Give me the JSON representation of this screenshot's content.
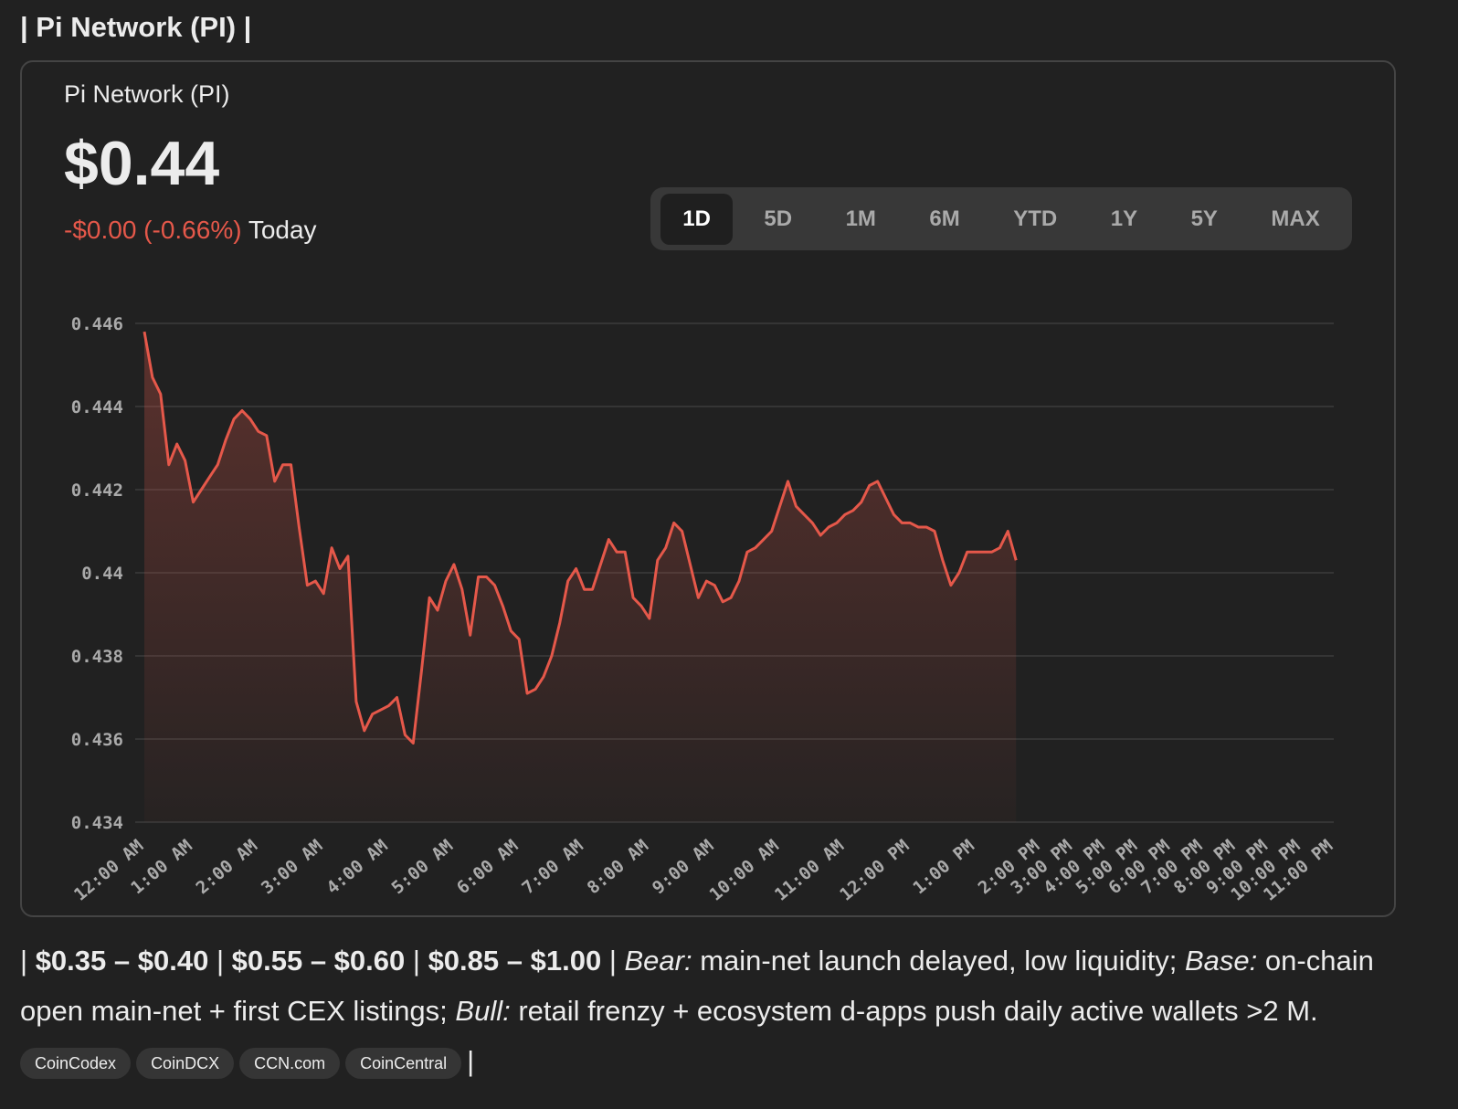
{
  "header": {
    "title": "| Pi Network (PI) |"
  },
  "card": {
    "name": "Pi Network (PI)",
    "price": "$0.44",
    "change": "-$0.00 (-0.66%)",
    "period": "Today",
    "ranges": [
      "1D",
      "5D",
      "1M",
      "6M",
      "YTD",
      "1Y",
      "5Y",
      "MAX"
    ],
    "active_range": "1D"
  },
  "chart_data": {
    "type": "line",
    "color": "#e5584a",
    "grid": true,
    "ylim": [
      0.434,
      0.446
    ],
    "yticks": [
      0.434,
      0.436,
      0.438,
      0.44,
      0.442,
      0.444,
      0.446
    ],
    "categories": [
      "12:00 AM",
      null,
      null,
      null,
      null,
      null,
      "1:00 AM",
      null,
      null,
      null,
      null,
      null,
      null,
      null,
      "2:00 AM",
      null,
      null,
      null,
      null,
      null,
      null,
      null,
      "3:00 AM",
      null,
      null,
      null,
      null,
      null,
      null,
      null,
      "4:00 AM",
      null,
      null,
      null,
      null,
      null,
      null,
      null,
      "5:00 AM",
      null,
      null,
      null,
      null,
      null,
      null,
      null,
      "6:00 AM",
      null,
      null,
      null,
      null,
      null,
      null,
      null,
      "7:00 AM",
      null,
      null,
      null,
      null,
      null,
      null,
      null,
      "8:00 AM",
      null,
      null,
      null,
      null,
      null,
      null,
      null,
      "9:00 AM",
      null,
      null,
      null,
      null,
      null,
      null,
      null,
      "10:00 AM",
      null,
      null,
      null,
      null,
      null,
      null,
      null,
      "11:00 AM",
      null,
      null,
      null,
      null,
      null,
      null,
      null,
      "12:00 PM",
      null,
      null,
      null,
      null,
      null,
      null,
      null,
      "1:00 PM",
      null,
      null,
      null,
      null,
      null,
      null,
      null,
      "2:00 PM",
      null,
      null,
      null,
      "3:00 PM",
      null,
      null,
      null,
      "4:00 PM",
      null,
      null,
      null,
      "5:00 PM",
      null,
      null,
      null,
      "6:00 PM",
      null,
      null,
      null,
      "7:00 PM",
      null,
      null,
      null,
      "8:00 PM",
      null,
      null,
      null,
      "9:00 PM",
      null,
      null,
      null,
      "10:00 PM",
      null,
      null,
      null,
      "11:00 PM"
    ],
    "values": [
      0.4458,
      0.4447,
      0.4443,
      0.4426,
      0.4431,
      0.4427,
      0.4417,
      0.442,
      0.4423,
      0.4426,
      0.4432,
      0.4437,
      0.4439,
      0.4437,
      0.4434,
      0.4433,
      0.4422,
      0.4426,
      0.4426,
      0.4411,
      0.4397,
      0.4398,
      0.4395,
      0.4406,
      0.4401,
      0.4404,
      0.4369,
      0.4362,
      0.4366,
      0.4367,
      0.4368,
      0.437,
      0.4361,
      0.4359,
      0.4376,
      0.4394,
      0.4391,
      0.4398,
      0.4402,
      0.4396,
      0.4385,
      0.4399,
      0.4399,
      0.4397,
      0.4392,
      0.4386,
      0.4384,
      0.4371,
      0.4372,
      0.4375,
      0.438,
      0.4388,
      0.4398,
      0.4401,
      0.4396,
      0.4396,
      0.4402,
      0.4408,
      0.4405,
      0.4405,
      0.4394,
      0.4392,
      0.4389,
      0.4403,
      0.4406,
      0.4412,
      0.441,
      0.4402,
      0.4394,
      0.4398,
      0.4397,
      0.4393,
      0.4394,
      0.4398,
      0.4405,
      0.4406,
      0.4408,
      0.441,
      0.4416,
      0.4422,
      0.4416,
      0.4414,
      0.4412,
      0.4409,
      0.4411,
      0.4412,
      0.4414,
      0.4415,
      0.4417,
      0.4421,
      0.4422,
      0.4418,
      0.4414,
      0.4412,
      0.4412,
      0.4411,
      0.4411,
      0.441,
      0.4403,
      0.4397,
      0.44,
      0.4405,
      0.4405,
      0.4405,
      0.4405,
      0.4406,
      0.441,
      0.4403,
      null,
      null,
      null,
      null,
      null,
      null,
      null,
      null,
      null,
      null,
      null,
      null,
      null,
      null,
      null,
      null,
      null,
      null,
      null,
      null,
      null,
      null,
      null,
      null,
      null,
      null,
      null,
      null,
      null,
      null,
      null,
      null,
      null,
      null,
      null,
      null,
      null,
      null,
      null
    ]
  },
  "footer": {
    "runs": [
      {
        "text": "|",
        "weight": "normal"
      },
      {
        "text": "$0.35 – $0.40",
        "weight": "bold"
      },
      {
        "text": "|",
        "weight": "normal"
      },
      {
        "text": "$0.55 – $0.60",
        "weight": "bold"
      },
      {
        "text": "|",
        "weight": "normal"
      },
      {
        "text": "$0.85 – $1.00",
        "weight": "bold"
      },
      {
        "text": "|",
        "weight": "normal"
      },
      {
        "text": "Bear:",
        "weight": "italic"
      },
      {
        "text": "main-net launch delayed, low liquidity;",
        "weight": "normal"
      },
      {
        "text": "Base:",
        "weight": "italic"
      },
      {
        "text": "on-chain open main-net + first CEX listings;",
        "weight": "normal"
      },
      {
        "text": "Bull:",
        "weight": "italic"
      },
      {
        "text": "retail frenzy + ecosystem d-apps push daily active wallets >2 M.",
        "weight": "normal"
      }
    ],
    "sources": [
      "CoinCodex",
      "CoinDCX",
      "CCN.com",
      "CoinCentral"
    ],
    "end": "|"
  }
}
